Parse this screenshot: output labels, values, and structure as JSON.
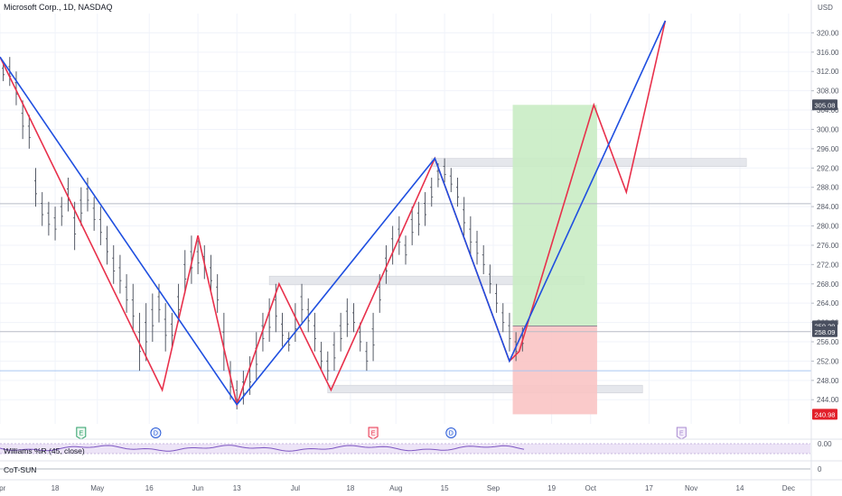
{
  "header": {
    "title": "Microsoft Corp., 1D, NASDAQ",
    "currency": "USD"
  },
  "colors": {
    "zigzag_red": "#e8304b",
    "zigzag_blue": "#1f4fe0",
    "profit_zone": "#c9ecc4",
    "loss_zone": "#f9c4c4",
    "price_badge_dark": "#4a5060",
    "price_badge_red": "#e2202a",
    "event_earnings": "#2ea06a",
    "event_dividend": "#2a5bd7",
    "bars": "#555a66"
  },
  "chart_data": {
    "type": "line",
    "y_axis": {
      "range": [
        239,
        324
      ],
      "ticks": [
        "320.00",
        "316.00",
        "312.00",
        "308.00",
        "304.00",
        "300.00",
        "296.00",
        "292.00",
        "288.00",
        "284.00",
        "280.00",
        "276.00",
        "272.00",
        "268.00",
        "264.00",
        "260.00",
        "256.00",
        "252.00",
        "248.00",
        "244.00"
      ],
      "tick_values": [
        320,
        316,
        312,
        308,
        304,
        300,
        296,
        292,
        288,
        284,
        280,
        276,
        272,
        268,
        264,
        260,
        256,
        252,
        248,
        244
      ]
    },
    "x_axis": {
      "labels": [
        "Apr",
        "18",
        "May",
        "16",
        "Jun",
        "13",
        "Jul",
        "18",
        "Aug",
        "15",
        "Sep",
        "19",
        "Oct",
        "17",
        "Nov",
        "14",
        "Dec"
      ],
      "label_days": [
        0,
        17,
        30,
        46,
        61,
        73,
        91,
        108,
        122,
        137,
        152,
        170,
        182,
        200,
        213,
        228,
        243
      ],
      "range_days": [
        0,
        250
      ]
    },
    "price_labels": [
      {
        "text": "305.08",
        "value": 305.08,
        "style": "dark"
      },
      {
        "text": "259.29",
        "value": 259.29,
        "style": "dark"
      },
      {
        "text": "258.09",
        "value": 258.09,
        "style": "dark"
      },
      {
        "text": "240.98",
        "value": 240.98,
        "style": "red"
      }
    ],
    "series": [
      {
        "color": "red",
        "points": [
          [
            0,
            315
          ],
          [
            50,
            246
          ],
          [
            61,
            278
          ],
          [
            73,
            243
          ],
          [
            86,
            268
          ],
          [
            102,
            246
          ],
          [
            134,
            294
          ],
          [
            157,
            252
          ],
          [
            160,
            254
          ],
          [
            183,
            305.08
          ],
          [
            193,
            287
          ],
          [
            205,
            322.5
          ]
        ]
      },
      {
        "color": "blue",
        "points": [
          [
            0,
            315
          ],
          [
            73,
            243
          ],
          [
            134,
            294
          ],
          [
            157,
            252
          ],
          [
            205,
            322.5
          ]
        ]
      }
    ],
    "price_bars": [
      [
        1,
        314,
        310
      ],
      [
        3,
        315,
        309
      ],
      [
        5,
        312,
        305
      ],
      [
        7,
        306,
        298
      ],
      [
        9,
        303,
        296
      ],
      [
        11,
        292,
        284
      ],
      [
        13,
        287,
        280
      ],
      [
        15,
        285,
        278
      ],
      [
        17,
        284,
        277
      ],
      [
        19,
        286,
        280
      ],
      [
        21,
        290,
        283
      ],
      [
        23,
        285,
        275
      ],
      [
        25,
        288,
        280
      ],
      [
        27,
        290,
        283
      ],
      [
        29,
        286,
        279
      ],
      [
        31,
        284,
        276
      ],
      [
        33,
        280,
        272
      ],
      [
        35,
        276,
        268
      ],
      [
        37,
        274,
        266
      ],
      [
        39,
        270,
        262
      ],
      [
        41,
        268,
        258
      ],
      [
        43,
        262,
        250
      ],
      [
        45,
        264,
        252
      ],
      [
        47,
        266,
        256
      ],
      [
        49,
        268,
        260
      ],
      [
        51,
        264,
        254
      ],
      [
        53,
        262,
        255
      ],
      [
        55,
        268,
        260
      ],
      [
        57,
        275,
        266
      ],
      [
        59,
        278,
        268
      ],
      [
        61,
        277,
        270
      ],
      [
        63,
        276,
        269
      ],
      [
        65,
        274,
        266
      ],
      [
        67,
        270,
        262
      ],
      [
        69,
        262,
        250
      ],
      [
        71,
        252,
        244
      ],
      [
        73,
        248,
        242
      ],
      [
        75,
        250,
        243
      ],
      [
        77,
        253,
        245
      ],
      [
        79,
        258,
        248
      ],
      [
        81,
        262,
        254
      ],
      [
        83,
        265,
        256
      ],
      [
        85,
        268,
        258
      ],
      [
        87,
        262,
        255
      ],
      [
        89,
        258,
        254
      ],
      [
        91,
        264,
        256
      ],
      [
        93,
        268,
        260
      ],
      [
        95,
        265,
        258
      ],
      [
        97,
        262,
        254
      ],
      [
        99,
        256,
        250
      ],
      [
        101,
        254,
        248
      ],
      [
        103,
        258,
        250
      ],
      [
        105,
        262,
        254
      ],
      [
        107,
        265,
        257
      ],
      [
        109,
        264,
        258
      ],
      [
        111,
        260,
        254
      ],
      [
        113,
        256,
        250
      ],
      [
        115,
        262,
        252
      ],
      [
        117,
        270,
        262
      ],
      [
        119,
        276,
        268
      ],
      [
        121,
        280,
        272
      ],
      [
        123,
        282,
        274
      ],
      [
        125,
        278,
        272
      ],
      [
        127,
        284,
        276
      ],
      [
        129,
        285,
        278
      ],
      [
        131,
        287,
        280
      ],
      [
        133,
        290,
        284
      ],
      [
        135,
        293,
        288
      ],
      [
        137,
        294,
        289
      ],
      [
        139,
        292,
        287
      ],
      [
        141,
        290,
        284
      ],
      [
        143,
        286,
        278
      ],
      [
        145,
        282,
        274
      ],
      [
        147,
        279,
        272
      ],
      [
        149,
        276,
        270
      ],
      [
        151,
        272,
        266
      ],
      [
        153,
        268,
        262
      ],
      [
        155,
        264,
        258
      ],
      [
        157,
        262,
        254
      ],
      [
        159,
        258,
        252
      ],
      [
        161,
        259,
        254
      ]
    ],
    "support_zones": [
      {
        "from_day": 133,
        "to_day": 230,
        "low": 292.3,
        "high": 294.0
      },
      {
        "from_day": 83,
        "to_day": 180,
        "low": 267.8,
        "high": 269.6
      },
      {
        "from_day": 101,
        "to_day": 198,
        "low": 245.4,
        "high": 247.0
      }
    ],
    "horizontal_lines": [
      {
        "value": 284.6,
        "color": "#b8bcc6"
      },
      {
        "value": 258.09,
        "color": "#b8bcc6"
      },
      {
        "value": 250.0,
        "color": "#a9c6f2"
      }
    ],
    "position": {
      "from_day": 158,
      "to_day": 184,
      "entry": 259.29,
      "target": 305.08,
      "stop": 240.98
    }
  },
  "events": [
    {
      "letter": "E",
      "day": 25,
      "type": "earnings"
    },
    {
      "letter": "D",
      "day": 48,
      "type": "dividend"
    },
    {
      "letter": "E",
      "day": 115,
      "type": "earnings-red"
    },
    {
      "letter": "D",
      "day": 139,
      "type": "dividend"
    },
    {
      "letter": "E",
      "day": 210,
      "type": "earnings-future"
    }
  ],
  "indicators": {
    "williams": {
      "label": "Williams %R (45, close)",
      "tick": "0.00"
    },
    "cot": {
      "label": "CoT-SUN",
      "tick": "0"
    }
  }
}
